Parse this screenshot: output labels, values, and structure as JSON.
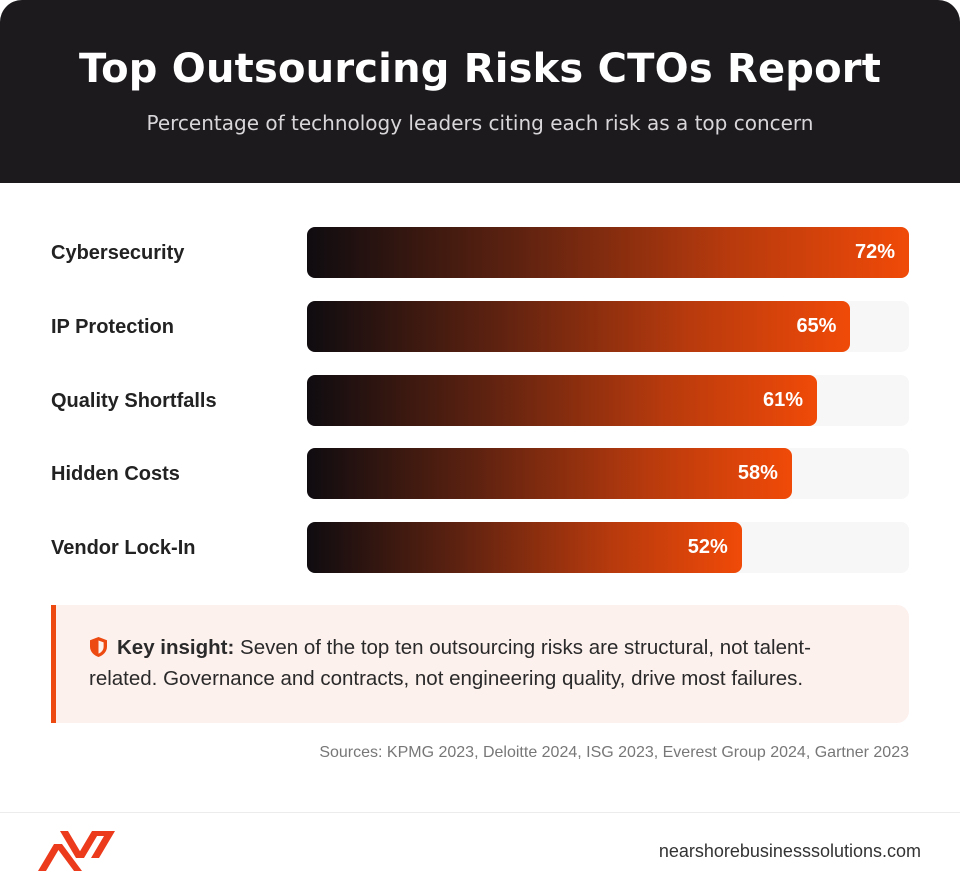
{
  "header": {
    "title": "Top Outsourcing Risks CTOs Report",
    "subtitle": "Percentage of technology leaders citing each risk as a top concern"
  },
  "chart_data": {
    "type": "bar",
    "orientation": "horizontal",
    "title": "Top Outsourcing Risks CTOs Report",
    "subtitle": "Percentage of technology leaders citing each risk as a top concern",
    "categories": [
      "Cybersecurity",
      "IP Protection",
      "Quality Shortfalls",
      "Hidden Costs",
      "Vendor Lock-In"
    ],
    "values": [
      72,
      65,
      61,
      58,
      52
    ],
    "value_labels": [
      "72%",
      "65%",
      "61%",
      "58%",
      "52%"
    ],
    "xlim": [
      0,
      72
    ],
    "grid": false,
    "legend": "none"
  },
  "insight": {
    "icon": "shield-icon",
    "label": "Key insight:",
    "text": " Seven of the top ten outsourcing risks are structural, not talent-related. Governance and contracts, not engineering quality, drive most failures."
  },
  "sources": "Sources: KPMG 2023, Deloitte 2024, ISG 2023, Everest Group 2024, Gartner 2023",
  "footer": {
    "logo_icon": "nbs-logo-icon",
    "site": "nearshorebusinesssolutions.com"
  },
  "colors": {
    "header_bg": "#1c1a1d",
    "accent": "#ec4a10",
    "bar_start": "#0f0c10",
    "bar_end": "#f04a08",
    "track": "#f7f7f7",
    "insight_bg": "#fdf1ee"
  }
}
